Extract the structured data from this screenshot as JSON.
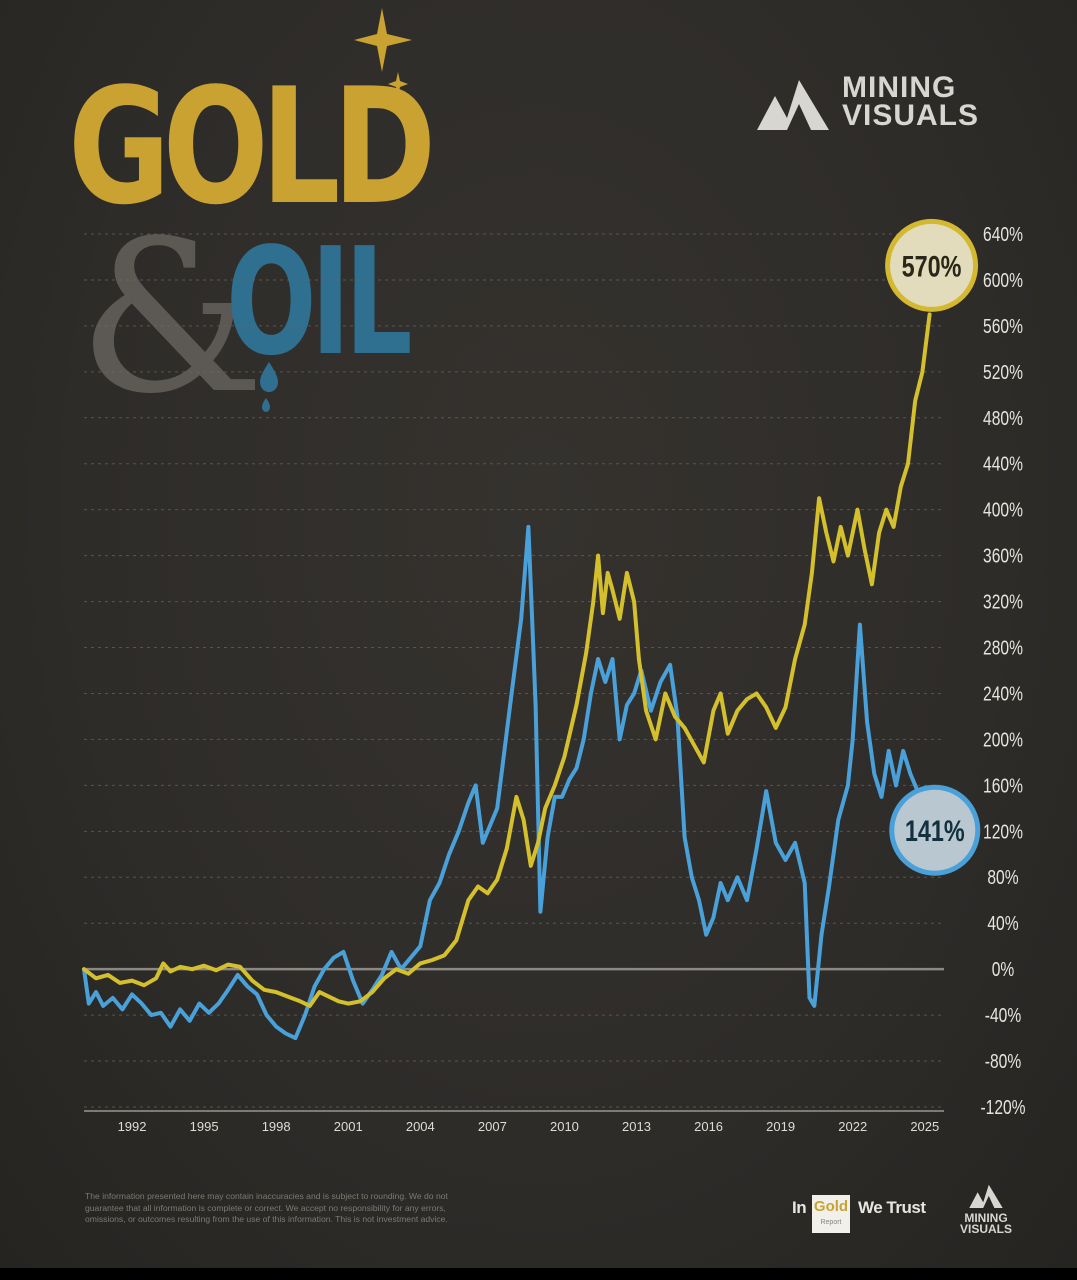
{
  "title": {
    "word1": "GOLD",
    "amp": "&",
    "word2": "OIL"
  },
  "brand": {
    "line1": "MINING",
    "line2": "VISUALS"
  },
  "colors": {
    "gold": "#d4c02c",
    "oil": "#4aa0d8",
    "background": "#2d2b28",
    "zero_line": "#8c8985"
  },
  "chart_data": {
    "type": "line",
    "xlabel": "",
    "ylabel": "",
    "ylim": [
      -120,
      640
    ],
    "xlim": [
      1990,
      2025.8
    ],
    "x_ticks": [
      "1992",
      "1995",
      "1998",
      "2001",
      "2004",
      "2007",
      "2010",
      "2013",
      "2016",
      "2019",
      "2022",
      "2025"
    ],
    "y_ticks": [
      "640%",
      "600%",
      "560%",
      "520%",
      "480%",
      "440%",
      "400%",
      "360%",
      "320%",
      "280%",
      "240%",
      "200%",
      "160%",
      "120%",
      "80%",
      "40%",
      "0%",
      "-40%",
      "-80%",
      "-120%"
    ],
    "grid": true,
    "end_labels": {
      "gold": "570%",
      "oil": "141%"
    },
    "series": [
      {
        "key": "gold",
        "color": "#d4c02c",
        "points": [
          [
            1990.0,
            0
          ],
          [
            1990.5,
            -8
          ],
          [
            1991.0,
            -5
          ],
          [
            1991.5,
            -12
          ],
          [
            1992.0,
            -10
          ],
          [
            1992.5,
            -14
          ],
          [
            1993.0,
            -8
          ],
          [
            1993.3,
            5
          ],
          [
            1993.6,
            -2
          ],
          [
            1994.0,
            2
          ],
          [
            1994.5,
            0
          ],
          [
            1995.0,
            3
          ],
          [
            1995.5,
            -1
          ],
          [
            1996.0,
            4
          ],
          [
            1996.5,
            2
          ],
          [
            1997.0,
            -10
          ],
          [
            1997.5,
            -18
          ],
          [
            1998.0,
            -20
          ],
          [
            1998.5,
            -24
          ],
          [
            1999.0,
            -28
          ],
          [
            1999.4,
            -32
          ],
          [
            1999.8,
            -20
          ],
          [
            2000.2,
            -24
          ],
          [
            2000.6,
            -28
          ],
          [
            2001.0,
            -30
          ],
          [
            2001.5,
            -28
          ],
          [
            2002.0,
            -20
          ],
          [
            2002.5,
            -8
          ],
          [
            2003.0,
            0
          ],
          [
            2003.5,
            -4
          ],
          [
            2004.0,
            5
          ],
          [
            2004.5,
            8
          ],
          [
            2005.0,
            12
          ],
          [
            2005.5,
            25
          ],
          [
            2006.0,
            60
          ],
          [
            2006.4,
            72
          ],
          [
            2006.8,
            66
          ],
          [
            2007.2,
            78
          ],
          [
            2007.6,
            105
          ],
          [
            2008.0,
            150
          ],
          [
            2008.3,
            130
          ],
          [
            2008.6,
            90
          ],
          [
            2008.9,
            110
          ],
          [
            2009.2,
            140
          ],
          [
            2009.6,
            160
          ],
          [
            2010.0,
            185
          ],
          [
            2010.5,
            230
          ],
          [
            2010.9,
            275
          ],
          [
            2011.2,
            320
          ],
          [
            2011.4,
            360
          ],
          [
            2011.6,
            310
          ],
          [
            2011.8,
            345
          ],
          [
            2012.0,
            330
          ],
          [
            2012.3,
            305
          ],
          [
            2012.6,
            345
          ],
          [
            2012.9,
            320
          ],
          [
            2013.1,
            270
          ],
          [
            2013.4,
            225
          ],
          [
            2013.8,
            200
          ],
          [
            2014.2,
            240
          ],
          [
            2014.6,
            220
          ],
          [
            2015.0,
            210
          ],
          [
            2015.4,
            195
          ],
          [
            2015.8,
            180
          ],
          [
            2016.2,
            225
          ],
          [
            2016.5,
            240
          ],
          [
            2016.8,
            205
          ],
          [
            2017.2,
            225
          ],
          [
            2017.6,
            235
          ],
          [
            2018.0,
            240
          ],
          [
            2018.4,
            228
          ],
          [
            2018.8,
            210
          ],
          [
            2019.2,
            228
          ],
          [
            2019.6,
            270
          ],
          [
            2020.0,
            300
          ],
          [
            2020.3,
            345
          ],
          [
            2020.6,
            410
          ],
          [
            2020.9,
            380
          ],
          [
            2021.2,
            355
          ],
          [
            2021.5,
            385
          ],
          [
            2021.8,
            360
          ],
          [
            2022.2,
            400
          ],
          [
            2022.5,
            365
          ],
          [
            2022.8,
            335
          ],
          [
            2023.1,
            380
          ],
          [
            2023.4,
            400
          ],
          [
            2023.7,
            385
          ],
          [
            2024.0,
            420
          ],
          [
            2024.3,
            440
          ],
          [
            2024.6,
            495
          ],
          [
            2024.9,
            520
          ],
          [
            2025.2,
            570
          ]
        ]
      },
      {
        "key": "oil",
        "color": "#4aa0d8",
        "points": [
          [
            1990.0,
            0
          ],
          [
            1990.2,
            -30
          ],
          [
            1990.5,
            -20
          ],
          [
            1990.8,
            -32
          ],
          [
            1991.2,
            -25
          ],
          [
            1991.6,
            -35
          ],
          [
            1992.0,
            -22
          ],
          [
            1992.4,
            -30
          ],
          [
            1992.8,
            -40
          ],
          [
            1993.2,
            -38
          ],
          [
            1993.6,
            -50
          ],
          [
            1994.0,
            -35
          ],
          [
            1994.4,
            -45
          ],
          [
            1994.8,
            -30
          ],
          [
            1995.2,
            -38
          ],
          [
            1995.6,
            -30
          ],
          [
            1996.0,
            -18
          ],
          [
            1996.4,
            -5
          ],
          [
            1996.8,
            -15
          ],
          [
            1997.2,
            -22
          ],
          [
            1997.6,
            -40
          ],
          [
            1998.0,
            -50
          ],
          [
            1998.4,
            -56
          ],
          [
            1998.8,
            -60
          ],
          [
            1999.2,
            -40
          ],
          [
            1999.6,
            -15
          ],
          [
            2000.0,
            0
          ],
          [
            2000.4,
            10
          ],
          [
            2000.8,
            15
          ],
          [
            2001.2,
            -10
          ],
          [
            2001.6,
            -30
          ],
          [
            2002.0,
            -18
          ],
          [
            2002.4,
            -5
          ],
          [
            2002.8,
            15
          ],
          [
            2003.2,
            0
          ],
          [
            2003.6,
            10
          ],
          [
            2004.0,
            20
          ],
          [
            2004.4,
            60
          ],
          [
            2004.8,
            75
          ],
          [
            2005.2,
            100
          ],
          [
            2005.6,
            120
          ],
          [
            2006.0,
            145
          ],
          [
            2006.3,
            160
          ],
          [
            2006.6,
            110
          ],
          [
            2006.9,
            125
          ],
          [
            2007.2,
            140
          ],
          [
            2007.5,
            190
          ],
          [
            2007.8,
            240
          ],
          [
            2008.2,
            305
          ],
          [
            2008.5,
            385
          ],
          [
            2008.8,
            230
          ],
          [
            2009.0,
            50
          ],
          [
            2009.3,
            115
          ],
          [
            2009.6,
            150
          ],
          [
            2009.9,
            150
          ],
          [
            2010.2,
            165
          ],
          [
            2010.5,
            175
          ],
          [
            2010.8,
            200
          ],
          [
            2011.1,
            240
          ],
          [
            2011.4,
            270
          ],
          [
            2011.7,
            250
          ],
          [
            2012.0,
            270
          ],
          [
            2012.3,
            200
          ],
          [
            2012.6,
            230
          ],
          [
            2012.9,
            240
          ],
          [
            2013.2,
            260
          ],
          [
            2013.6,
            225
          ],
          [
            2014.0,
            250
          ],
          [
            2014.4,
            265
          ],
          [
            2014.7,
            220
          ],
          [
            2015.0,
            115
          ],
          [
            2015.3,
            80
          ],
          [
            2015.6,
            60
          ],
          [
            2015.9,
            30
          ],
          [
            2016.2,
            45
          ],
          [
            2016.5,
            75
          ],
          [
            2016.8,
            60
          ],
          [
            2017.2,
            80
          ],
          [
            2017.6,
            60
          ],
          [
            2018.0,
            105
          ],
          [
            2018.4,
            155
          ],
          [
            2018.8,
            110
          ],
          [
            2019.2,
            95
          ],
          [
            2019.6,
            110
          ],
          [
            2020.0,
            75
          ],
          [
            2020.2,
            -25
          ],
          [
            2020.4,
            -32
          ],
          [
            2020.7,
            30
          ],
          [
            2021.0,
            70
          ],
          [
            2021.4,
            130
          ],
          [
            2021.8,
            160
          ],
          [
            2022.0,
            200
          ],
          [
            2022.3,
            300
          ],
          [
            2022.6,
            215
          ],
          [
            2022.9,
            170
          ],
          [
            2023.2,
            150
          ],
          [
            2023.5,
            190
          ],
          [
            2023.8,
            160
          ],
          [
            2024.1,
            190
          ],
          [
            2024.4,
            170
          ],
          [
            2024.7,
            155
          ],
          [
            2025.0,
            141
          ]
        ]
      }
    ]
  },
  "disclaimer": [
    "The information presented here may contain inaccuracies and is subject to rounding. We do not",
    "guarantee that all information is complete or correct. We accept no responsibility for any errors,",
    "omissions, or outcomes resulting from the use of this information. This is not investment advice."
  ],
  "partner": {
    "in": "In",
    "gold": "Gold",
    "report": "Report",
    "we_trust": "We Trust"
  },
  "footer_brand": {
    "line1": "MINING",
    "line2": "VISUALS"
  }
}
